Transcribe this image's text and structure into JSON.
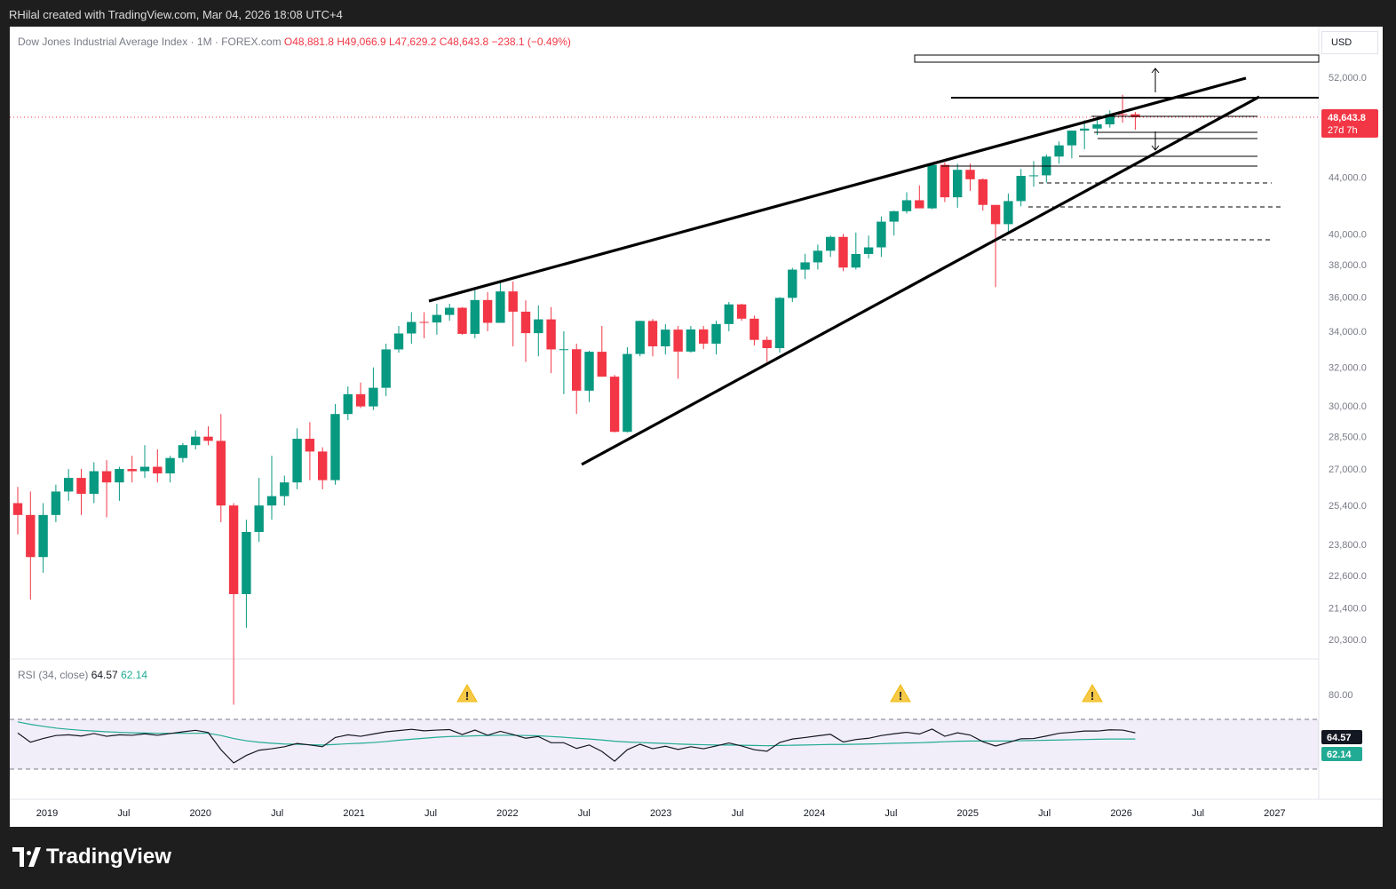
{
  "header": {
    "attribution": "RHilal created with TradingView.com, Mar 04, 2026 18:08 UTC+4"
  },
  "footer": {
    "brand": "TradingView"
  },
  "colors": {
    "up": "#089981",
    "down": "#f23645",
    "rsi": "#131722",
    "rsi_ma": "#22ab94",
    "band": "#7e57c2",
    "line": "#000000"
  },
  "chart_data": [
    {
      "type": "candlestick",
      "title": "Dow Jones Industrial Average Index · 1M · FOREX.com",
      "ohlc_label": {
        "o": "O48,881.8",
        "h": "H49,066.9",
        "l": "L47,629.2",
        "c": "C48,643.8",
        "chg": "−238.1 (−0.49%)"
      },
      "currency": "USD",
      "scale": "log",
      "ylim": [
        19800,
        55000
      ],
      "y_ticks": [
        "52,000.0",
        "44,000.0",
        "40,000.0",
        "38,000.0",
        "36,000.0",
        "34,000.0",
        "32,000.0",
        "30,000.0",
        "28,500.0",
        "27,000.0",
        "25,400.0",
        "23,800.0",
        "22,600.0",
        "21,400.0",
        "20,300.0"
      ],
      "x_ticks": [
        "2019",
        "Jul",
        "2020",
        "Jul",
        "2021",
        "Jul",
        "2022",
        "Jul",
        "2023",
        "Jul",
        "2024",
        "Jul",
        "2025",
        "Jul",
        "2026",
        "Jul",
        "2027"
      ],
      "last_price_label": "48,643.8",
      "countdown_label": "27d 7h",
      "candles": [
        [
          25500,
          26200,
          24200,
          25000
        ],
        [
          25000,
          26000,
          21700,
          23300
        ],
        [
          23300,
          25500,
          22700,
          25000
        ],
        [
          25000,
          26300,
          24700,
          26000
        ],
        [
          26000,
          27000,
          25600,
          26600
        ],
        [
          26600,
          27000,
          25000,
          25900
        ],
        [
          25900,
          27300,
          25500,
          26900
        ],
        [
          26900,
          27400,
          24900,
          26400
        ],
        [
          26400,
          27100,
          25600,
          27000
        ],
        [
          27000,
          27600,
          26400,
          26900
        ],
        [
          26900,
          28100,
          26600,
          27100
        ],
        [
          27100,
          27900,
          26400,
          26800
        ],
        [
          26800,
          27600,
          26400,
          27500
        ],
        [
          27500,
          28200,
          27300,
          28100
        ],
        [
          28100,
          28800,
          27900,
          28500
        ],
        [
          28500,
          29000,
          28100,
          28300
        ],
        [
          28300,
          29600,
          24700,
          25400
        ],
        [
          25400,
          25500,
          18200,
          21900
        ],
        [
          21900,
          24800,
          20700,
          24300
        ],
        [
          24300,
          26600,
          23900,
          25400
        ],
        [
          25400,
          27600,
          24800,
          25800
        ],
        [
          25800,
          26700,
          25400,
          26400
        ],
        [
          26400,
          28900,
          26100,
          28400
        ],
        [
          28400,
          29200,
          26500,
          27800
        ],
        [
          27800,
          28000,
          26100,
          26500
        ],
        [
          26500,
          30100,
          26300,
          29600
        ],
        [
          29600,
          31000,
          29300,
          30600
        ],
        [
          30600,
          31200,
          29900,
          29980
        ],
        [
          29980,
          32000,
          29800,
          30930
        ],
        [
          30930,
          33300,
          30500,
          32980
        ],
        [
          32980,
          34300,
          32800,
          33870
        ],
        [
          33870,
          35100,
          33300,
          34530
        ],
        [
          34530,
          35100,
          33600,
          34500
        ],
        [
          34500,
          35600,
          33800,
          34940
        ],
        [
          34940,
          35600,
          34600,
          35360
        ],
        [
          35360,
          35400,
          33800,
          33850
        ],
        [
          33850,
          36600,
          33600,
          35820
        ],
        [
          35820,
          36300,
          34000,
          34480
        ],
        [
          34480,
          36900,
          34500,
          36340
        ],
        [
          36340,
          36950,
          33150,
          35130
        ],
        [
          35130,
          35800,
          32300,
          33890
        ],
        [
          33890,
          35500,
          32600,
          34680
        ],
        [
          34680,
          35400,
          31700,
          32980
        ],
        [
          32980,
          34000,
          30600,
          32990
        ],
        [
          32990,
          33300,
          29600,
          30780
        ],
        [
          30780,
          32900,
          30200,
          32850
        ],
        [
          32850,
          34300,
          31500,
          31510
        ],
        [
          31510,
          31600,
          28700,
          28730
        ],
        [
          28730,
          33100,
          28700,
          32730
        ],
        [
          32730,
          34600,
          32600,
          34590
        ],
        [
          34590,
          34700,
          32600,
          33150
        ],
        [
          33150,
          34400,
          32700,
          34090
        ],
        [
          34090,
          34300,
          31400,
          32860
        ],
        [
          32860,
          34300,
          32800,
          34100
        ],
        [
          34100,
          34300,
          33000,
          33300
        ],
        [
          33300,
          34600,
          32700,
          34410
        ],
        [
          34410,
          35700,
          34000,
          35560
        ],
        [
          35560,
          35600,
          34600,
          34720
        ],
        [
          34720,
          34900,
          33200,
          33510
        ],
        [
          33510,
          33700,
          32300,
          33050
        ],
        [
          33050,
          36000,
          32800,
          35950
        ],
        [
          35950,
          37800,
          35700,
          37690
        ],
        [
          37690,
          38700,
          37100,
          38150
        ],
        [
          38150,
          39300,
          37700,
          38900
        ],
        [
          38900,
          39900,
          38500,
          39810
        ],
        [
          39810,
          40000,
          37600,
          37820
        ],
        [
          37820,
          40100,
          37700,
          38690
        ],
        [
          38690,
          39900,
          38400,
          39120
        ],
        [
          39120,
          41200,
          38500,
          40840
        ],
        [
          40840,
          41600,
          39900,
          41560
        ],
        [
          41560,
          42900,
          41400,
          42330
        ],
        [
          42330,
          43400,
          41800,
          41760
        ],
        [
          41760,
          45000,
          41700,
          44910
        ],
        [
          44910,
          45100,
          42200,
          42540
        ],
        [
          42540,
          45000,
          41800,
          44540
        ],
        [
          44540,
          45000,
          43000,
          43840
        ],
        [
          43840,
          43900,
          41600,
          42000
        ],
        [
          42000,
          42000,
          36600,
          40670
        ],
        [
          40670,
          42800,
          40100,
          42270
        ],
        [
          42270,
          44600,
          41900,
          44090
        ],
        [
          44090,
          45200,
          43300,
          44130
        ],
        [
          44130,
          45700,
          43600,
          45540
        ],
        [
          45540,
          46700,
          45000,
          46400
        ],
        [
          46400,
          47500,
          45400,
          47560
        ],
        [
          47560,
          48400,
          46100,
          47720
        ],
        [
          47720,
          48400,
          47200,
          48060
        ],
        [
          48060,
          49200,
          47800,
          48890
        ],
        [
          48890,
          50500,
          48200,
          48880
        ],
        [
          48880,
          49070,
          47630,
          48640
        ]
      ]
    },
    {
      "type": "line",
      "title": "RSI (34, close)",
      "legend_values": [
        "64.57",
        "62.14"
      ],
      "ylim": [
        40,
        85
      ],
      "y_ticks": [
        "80.00"
      ],
      "levels": [
        70,
        50
      ],
      "last_labels": [
        "64.57",
        "62.14"
      ],
      "series": [
        {
          "values": [
            64.5,
            60.8,
            62.3,
            63.5,
            63.8,
            63.3,
            64.3,
            63.2,
            63.8,
            63.6,
            64.2,
            63.6,
            64.3,
            65.0,
            65.6,
            64.7,
            57.8,
            52.5,
            55.5,
            57.6,
            58.2,
            59.0,
            60.3,
            59.7,
            59.0,
            62.7,
            63.8,
            63.2,
            64.1,
            65.0,
            65.5,
            66.0,
            65.4,
            65.7,
            65.9,
            63.9,
            65.7,
            63.6,
            65.2,
            63.9,
            62.4,
            63.1,
            60.6,
            60.6,
            58.3,
            59.7,
            57.1,
            53.2,
            57.8,
            60.0,
            58.2,
            59.2,
            57.9,
            59.0,
            58.2,
            59.3,
            60.5,
            59.3,
            57.8,
            57.2,
            60.7,
            62.1,
            62.7,
            63.4,
            64.0,
            60.9,
            61.9,
            62.4,
            63.5,
            64.2,
            64.8,
            64.1,
            66.1,
            63.2,
            64.6,
            63.7,
            61.0,
            59.3,
            60.7,
            62.2,
            62.3,
            63.3,
            64.4,
            64.8,
            65.3,
            65.3,
            65.8,
            65.7,
            64.6
          ]
        },
        {
          "values": [
            69.0,
            68.0,
            67.2,
            66.5,
            66.0,
            65.6,
            65.3,
            65.0,
            64.8,
            64.6,
            64.5,
            64.4,
            64.4,
            64.4,
            64.4,
            64.4,
            63.5,
            62.3,
            61.4,
            60.8,
            60.4,
            60.1,
            60.0,
            59.8,
            59.7,
            59.9,
            60.2,
            60.4,
            60.7,
            61.1,
            61.6,
            62.0,
            62.4,
            62.8,
            63.1,
            63.2,
            63.4,
            63.5,
            63.6,
            63.6,
            63.5,
            63.4,
            63.1,
            62.8,
            62.4,
            62.1,
            61.7,
            61.2,
            60.9,
            60.7,
            60.5,
            60.3,
            60.1,
            59.9,
            59.8,
            59.7,
            59.7,
            59.6,
            59.5,
            59.4,
            59.5,
            59.6,
            59.7,
            59.8,
            59.9,
            59.9,
            60.0,
            60.1,
            60.2,
            60.4,
            60.5,
            60.6,
            60.8,
            61.0,
            61.2,
            61.3,
            61.3,
            61.3,
            61.3,
            61.4,
            61.5,
            61.6,
            61.7,
            61.8,
            61.9,
            62.0,
            62.1,
            62.1,
            62.1
          ]
        }
      ]
    }
  ]
}
